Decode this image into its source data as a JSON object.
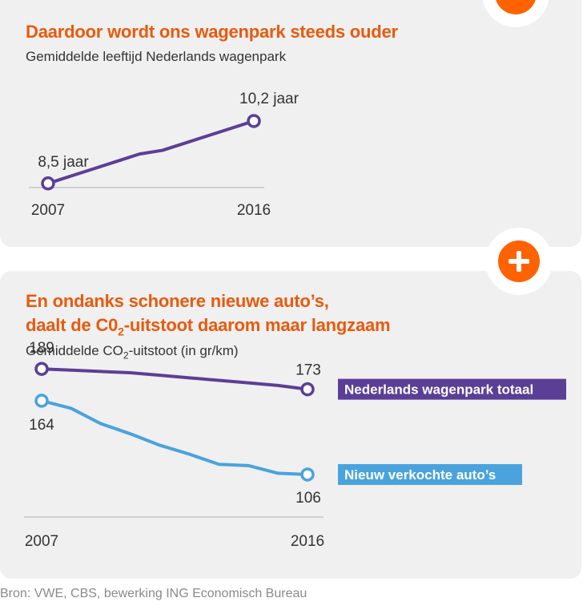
{
  "source": "Bron: VWE, CBS, bewerking ING Economisch Bureau",
  "colors": {
    "orange": "#ff6200",
    "purple": "#5b3f96",
    "blue": "#4aa3dc",
    "panel": "#f0f0f0"
  },
  "chart_data": [
    {
      "type": "line",
      "title": "Daardoor wordt ons wagenpark steeds ouder",
      "subtitle": "Gemiddelde leeftijd Nederlands wagenpark",
      "x": [
        2007,
        2008,
        2009,
        2010,
        2011,
        2012,
        2013,
        2014,
        2015,
        2016
      ],
      "xticks": [
        "2007",
        "2016"
      ],
      "series": [
        {
          "values": [
            8.5,
            8.7,
            8.9,
            9.1,
            9.3,
            9.4,
            9.6,
            9.8,
            10.0,
            10.2
          ],
          "start_label": "8,5 jaar",
          "end_label": "10,2 jaar",
          "color": "#5b3f96"
        }
      ],
      "ylim": [
        7.6,
        11.4
      ]
    },
    {
      "type": "line",
      "title_line1": "En ondanks schonere nieuwe auto’s,",
      "title_line2_pre": "daalt de C0",
      "title_line2_sub": "2",
      "title_line2_post": "-uitstoot daarom maar langzaam",
      "subtitle_pre": "Gemiddelde CO",
      "subtitle_sub": "2",
      "subtitle_post": "-uitstoot (in gr/km)",
      "x": [
        2007,
        2008,
        2009,
        2010,
        2011,
        2012,
        2013,
        2014,
        2015,
        2016
      ],
      "xticks": [
        "2007",
        "2016"
      ],
      "series": [
        {
          "name": "Nederlands wagenpark totaal",
          "values": [
            189,
            188,
            187,
            186,
            184,
            182,
            180,
            178,
            176,
            173
          ],
          "start_label": "189",
          "end_label": "173",
          "color": "#5b3f96"
        },
        {
          "name": "Nieuw verkochte auto’s",
          "values": [
            164,
            158,
            146,
            138,
            129,
            122,
            114,
            113,
            107,
            106
          ],
          "start_label": "164",
          "end_label": "106",
          "color": "#4aa3dc"
        }
      ],
      "ylim": [
        60,
        220
      ]
    }
  ]
}
